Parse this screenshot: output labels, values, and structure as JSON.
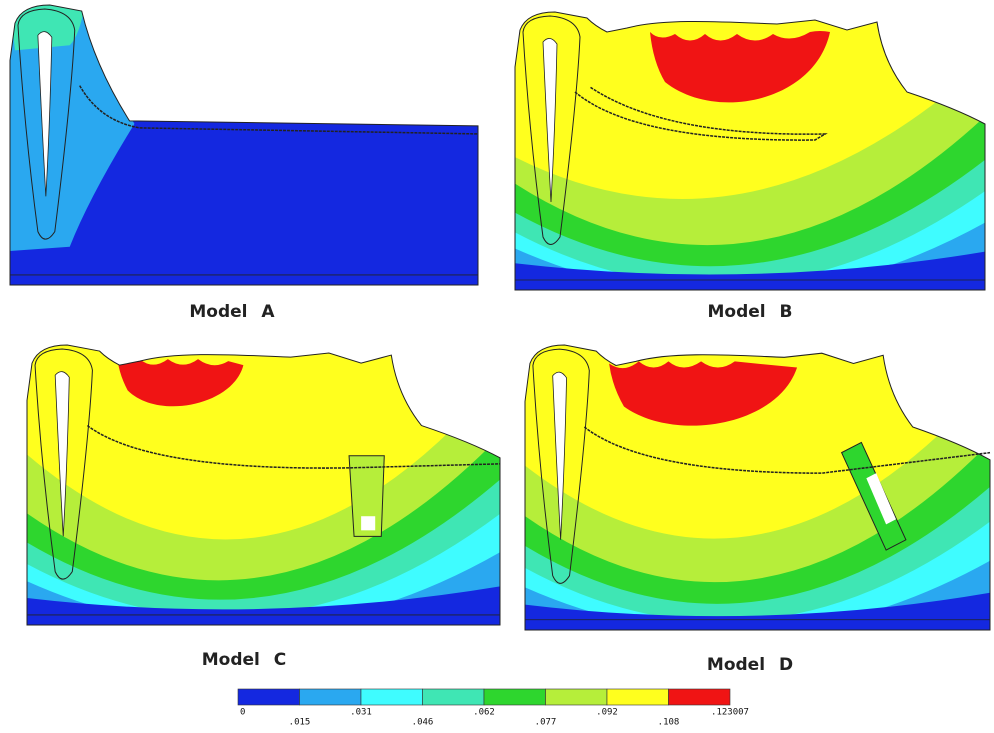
{
  "panels": [
    {
      "label": "Model A"
    },
    {
      "label": "Model B"
    },
    {
      "label": "Model C"
    },
    {
      "label": "Model D"
    }
  ],
  "legend": {
    "colors": [
      "#1428e0",
      "#2aa8f0",
      "#3ffcff",
      "#3fe6b4",
      "#2ed62e",
      "#b6ee3a",
      "#ffff1e",
      "#f01414"
    ],
    "labels": [
      "0",
      ".015",
      ".031",
      ".046",
      ".062",
      ".077",
      ".092",
      ".108",
      ".123007"
    ]
  }
}
